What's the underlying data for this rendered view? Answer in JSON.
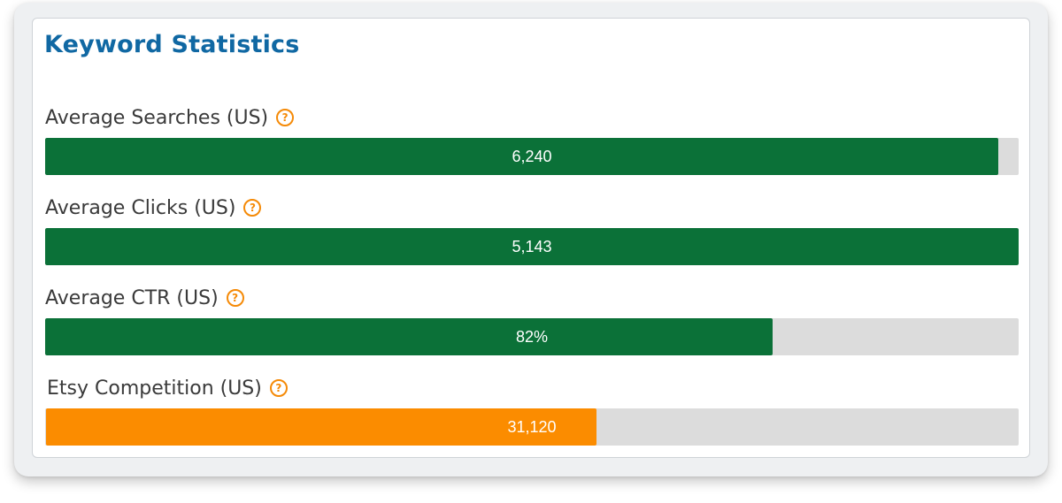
{
  "panel": {
    "title": "Keyword Statistics"
  },
  "colors": {
    "title": "#1068a3",
    "positive_bar": "#0b7138",
    "competition_bar": "#fb8c00",
    "track": "#dcdcdc",
    "help_icon": "#f58a07"
  },
  "stats": [
    {
      "label": "Average Searches (US)",
      "value": "6,240",
      "fill_fraction": 0.979,
      "color": "#0b7138",
      "help_icon": "question-circle-icon"
    },
    {
      "label": "Average Clicks (US)",
      "value": "5,143",
      "fill_fraction": 1.0,
      "color": "#0b7138",
      "help_icon": "question-circle-icon"
    },
    {
      "label": "Average CTR (US)",
      "value": "82%",
      "fill_fraction": 0.747,
      "color": "#0b7138",
      "help_icon": "question-circle-icon"
    },
    {
      "label": "Etsy Competition (US)",
      "value": "31,120",
      "fill_fraction": 0.565,
      "color": "#fb8c00",
      "help_icon": "question-circle-icon"
    }
  ]
}
